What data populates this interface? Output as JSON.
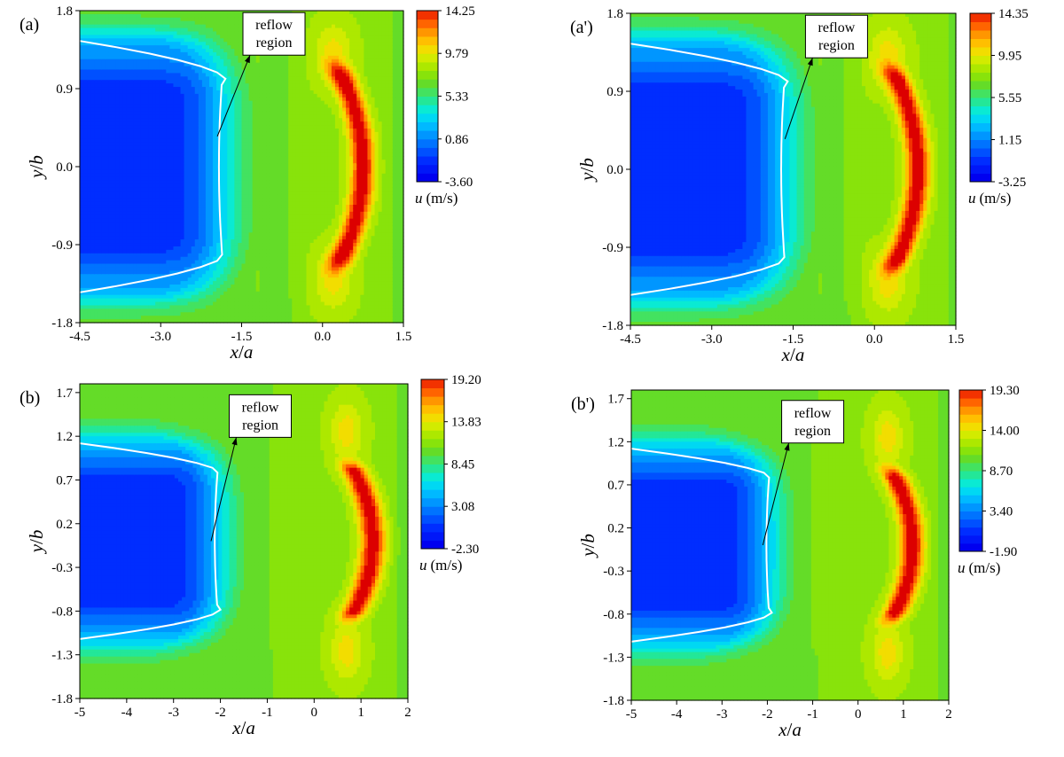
{
  "chart_data": [
    {
      "panel_label": "(a)",
      "type": "heatmap",
      "xlabel_var": "x",
      "xlabel_sep": "/",
      "xlabel_den": "a",
      "ylabel_var": "y",
      "ylabel_sep": "/",
      "ylabel_den": "b",
      "xlim": [
        -4.5,
        1.5
      ],
      "ylim": [
        -1.8,
        1.8
      ],
      "x_ticks": [
        -4.5,
        -3.0,
        -1.5,
        0.0,
        1.5
      ],
      "x_tick_labels": [
        "-4.5",
        "-3.0",
        "-1.5",
        "0.0",
        "1.5"
      ],
      "y_ticks": [
        -1.8,
        -0.9,
        0.0,
        0.9,
        1.8
      ],
      "y_tick_labels": [
        "-1.8",
        "-0.9",
        "0.0",
        "0.9",
        "1.8"
      ],
      "colorbar": {
        "label_var": "u",
        "label_unit": "(m/s)",
        "range": [
          -3.6,
          14.25
        ],
        "ticks": [
          -3.6,
          0.86,
          5.33,
          9.79,
          14.25
        ],
        "tick_labels": [
          "-3.60",
          "0.86",
          "5.33",
          "9.79",
          "14.25"
        ]
      },
      "field": {
        "jet_x": 0.75,
        "jet_y_half": 1.25,
        "jet_width": 0.32,
        "reflow_x": -1.8,
        "wake_y_half": 1.45,
        "yellow_y": 1.3,
        "green_x": -0.5
      },
      "annotation": {
        "lines": [
          "reflow",
          "region"
        ],
        "box_xy": [
          -0.9,
          1.45
        ],
        "arrow_from": [
          -0.9,
          1.0
        ],
        "arrow_to": [
          -1.95,
          0.35
        ]
      }
    },
    {
      "panel_label": "(a')",
      "type": "heatmap",
      "xlabel_var": "x",
      "xlabel_sep": "/",
      "xlabel_den": "a",
      "ylabel_var": "y",
      "ylabel_sep": "/",
      "ylabel_den": "b",
      "xlim": [
        -4.5,
        1.5
      ],
      "ylim": [
        -1.8,
        1.8
      ],
      "x_ticks": [
        -4.5,
        -3.0,
        -1.5,
        0.0,
        1.5
      ],
      "x_tick_labels": [
        "-4.5",
        "-3.0",
        "-1.5",
        "0.0",
        "1.5"
      ],
      "y_ticks": [
        -1.8,
        -0.9,
        0.0,
        0.9,
        1.8
      ],
      "y_tick_labels": [
        "-1.8",
        "-0.9",
        "0.0",
        "0.9",
        "1.8"
      ],
      "colorbar": {
        "label_var": "u",
        "label_unit": "(m/s)",
        "range": [
          -3.25,
          14.35
        ],
        "ticks": [
          -3.25,
          1.15,
          5.55,
          9.95,
          14.35
        ],
        "tick_labels": [
          "-3.25",
          "1.15",
          "5.55",
          "9.95",
          "14.35"
        ]
      },
      "field": {
        "jet_x": 0.8,
        "jet_y_half": 1.25,
        "jet_width": 0.32,
        "reflow_x": -1.6,
        "wake_y_half": 1.45,
        "yellow_y": 1.3,
        "green_x": -0.4
      },
      "annotation": {
        "lines": [
          "reflow",
          "region"
        ],
        "box_xy": [
          -0.7,
          1.45
        ],
        "arrow_from": [
          -0.7,
          1.0
        ],
        "arrow_to": [
          -1.65,
          0.35
        ]
      }
    },
    {
      "panel_label": "(b)",
      "type": "heatmap",
      "xlabel_var": "x",
      "xlabel_sep": "/",
      "xlabel_den": "a",
      "ylabel_var": "y",
      "ylabel_sep": "/",
      "ylabel_den": "b",
      "xlim": [
        -5,
        2
      ],
      "ylim": [
        -1.8,
        1.8
      ],
      "x_ticks": [
        -5,
        -4,
        -3,
        -2,
        -1,
        0,
        1,
        2
      ],
      "x_tick_labels": [
        "-5",
        "-4",
        "-3",
        "-2",
        "-1",
        "0",
        "1",
        "2"
      ],
      "y_ticks": [
        -1.8,
        -1.3,
        -0.8,
        -0.3,
        0.2,
        0.7,
        1.2,
        1.7
      ],
      "y_tick_labels": [
        "-1.8",
        "-1.3",
        "-0.8",
        "-0.3",
        "0.2",
        "0.7",
        "1.2",
        "1.7"
      ],
      "colorbar": {
        "label_var": "u",
        "label_unit": "(m/s)",
        "range": [
          -2.3,
          19.2
        ],
        "ticks": [
          -2.3,
          3.08,
          8.45,
          13.83,
          19.2
        ],
        "tick_labels": [
          "-2.30",
          "3.08",
          "8.45",
          "13.83",
          "19.20"
        ]
      },
      "field": {
        "jet_x": 1.25,
        "jet_y_half": 0.95,
        "jet_width": 0.38,
        "reflow_x": -2.0,
        "wake_y_half": 1.12,
        "yellow_y": 1.25,
        "green_x": -0.8
      },
      "annotation": {
        "lines": [
          "reflow",
          "region"
        ],
        "box_xy": [
          -1.15,
          1.35
        ],
        "arrow_from": [
          -1.15,
          0.95
        ],
        "arrow_to": [
          -2.2,
          0.0
        ]
      }
    },
    {
      "panel_label": "(b')",
      "type": "heatmap",
      "xlabel_var": "x",
      "xlabel_sep": "/",
      "xlabel_den": "a",
      "ylabel_var": "y",
      "ylabel_sep": "/",
      "ylabel_den": "b",
      "xlim": [
        -5,
        2
      ],
      "ylim": [
        -1.8,
        1.8
      ],
      "x_ticks": [
        -5,
        -4,
        -3,
        -2,
        -1,
        0,
        1,
        2
      ],
      "x_tick_labels": [
        "-5",
        "-4",
        "-3",
        "-2",
        "-1",
        "0",
        "1",
        "2"
      ],
      "y_ticks": [
        -1.8,
        -1.3,
        -0.8,
        -0.3,
        0.2,
        0.7,
        1.2,
        1.7
      ],
      "y_tick_labels": [
        "-1.8",
        "-1.3",
        "-0.8",
        "-0.3",
        "0.2",
        "0.7",
        "1.2",
        "1.7"
      ],
      "colorbar": {
        "label_var": "u",
        "label_unit": "(m/s)",
        "range": [
          -1.9,
          19.3
        ],
        "ticks": [
          -1.9,
          3.4,
          8.7,
          14.0,
          19.3
        ],
        "tick_labels": [
          "-1.90",
          "3.40",
          "8.70",
          "14.00",
          "19.30"
        ]
      },
      "field": {
        "jet_x": 1.2,
        "jet_y_half": 0.95,
        "jet_width": 0.38,
        "reflow_x": -1.9,
        "wake_y_half": 1.12,
        "yellow_y": 1.25,
        "green_x": -0.8
      },
      "annotation": {
        "lines": [
          "reflow",
          "region"
        ],
        "box_xy": [
          -1.0,
          1.35
        ],
        "arrow_from": [
          -1.0,
          0.95
        ],
        "arrow_to": [
          -2.1,
          0.0
        ]
      }
    }
  ]
}
